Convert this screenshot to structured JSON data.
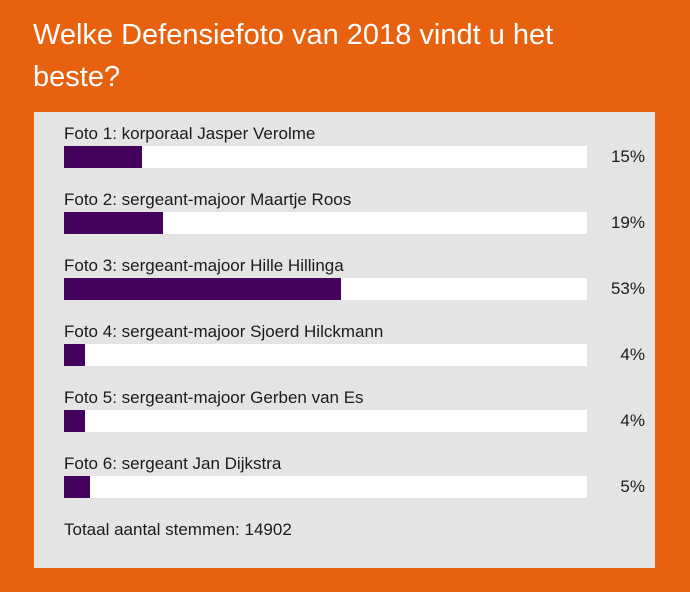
{
  "page": {
    "background_color": "#e7610f",
    "panel_color": "#e4e4e4"
  },
  "header": {
    "title": "Welke Defensiefoto van 2018 vindt u het beste?",
    "title_lines": [
      "Welke Defensiefoto van 2018 vindt u het",
      "beste?"
    ]
  },
  "poll": {
    "bar_color": "#44015e",
    "track_color": "#ffffff",
    "items": [
      {
        "label": "Foto 1: korporaal Jasper Verolme",
        "percent": 15,
        "percent_label": "15%"
      },
      {
        "label": "Foto 2: sergeant-majoor Maartje Roos",
        "percent": 19,
        "percent_label": "19%"
      },
      {
        "label": "Foto 3: sergeant-majoor Hille Hillinga",
        "percent": 53,
        "percent_label": "53%"
      },
      {
        "label": "Foto 4: sergeant-majoor Sjoerd Hilckmann",
        "percent": 4,
        "percent_label": "4%"
      },
      {
        "label": "Foto 5: sergeant-majoor Gerben van Es",
        "percent": 4,
        "percent_label": "4%"
      },
      {
        "label": "Foto 6: sergeant Jan Dijkstra",
        "percent": 5,
        "percent_label": "5%"
      }
    ],
    "total_label": "Totaal aantal stemmen:",
    "total_votes": "14902"
  },
  "chart_data": {
    "type": "bar",
    "orientation": "horizontal",
    "title": "Welke Defensiefoto van 2018 vindt u het beste?",
    "categories": [
      "Foto 1: korporaal Jasper Verolme",
      "Foto 2: sergeant-majoor Maartje Roos",
      "Foto 3: sergeant-majoor Hille Hillinga",
      "Foto 4: sergeant-majoor Sjoerd Hilckmann",
      "Foto 5: sergeant-majoor Gerben van Es",
      "Foto 6: sergeant Jan Dijkstra"
    ],
    "values": [
      15,
      19,
      53,
      4,
      4,
      5
    ],
    "unit": "%",
    "xlim": [
      0,
      100
    ],
    "grid": false,
    "legend": false,
    "annotations": [
      "Totaal aantal stemmen: 14902"
    ]
  }
}
